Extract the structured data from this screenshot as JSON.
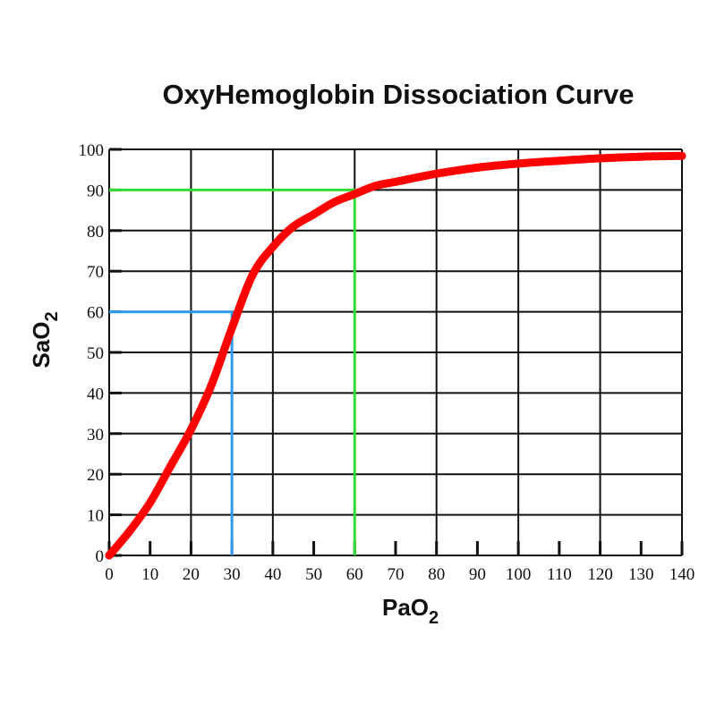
{
  "chart_data": {
    "type": "line",
    "title": "OxyHemoglobin Dissociation Curve",
    "xlabel": {
      "main": "PaO",
      "subscript": "2"
    },
    "ylabel": {
      "main": "SaO",
      "subscript": "2"
    },
    "xlim": [
      0,
      140
    ],
    "ylim": [
      0,
      100
    ],
    "x_ticks": [
      0,
      10,
      20,
      30,
      40,
      50,
      60,
      70,
      80,
      90,
      100,
      110,
      120,
      130,
      140
    ],
    "y_ticks": [
      0,
      10,
      20,
      30,
      40,
      50,
      60,
      70,
      80,
      90,
      100
    ],
    "x_gridlines": [
      0,
      20,
      40,
      60,
      80,
      100,
      120,
      140
    ],
    "y_gridlines": [
      0,
      10,
      20,
      30,
      40,
      50,
      60,
      70,
      80,
      90,
      100
    ],
    "series": [
      {
        "name": "oxyhemoglobin-curve",
        "color": "#ff0000",
        "x": [
          0,
          5,
          10,
          15,
          20,
          25,
          30,
          35,
          40,
          45,
          50,
          55,
          60,
          65,
          70,
          80,
          90,
          100,
          110,
          120,
          130,
          140
        ],
        "y": [
          0,
          6,
          13,
          22,
          31,
          42,
          56,
          69,
          76,
          81,
          84,
          87,
          89,
          91,
          92,
          94,
          95.5,
          96.5,
          97.2,
          97.8,
          98.2,
          98.4
        ]
      }
    ],
    "reference_lines": [
      {
        "name": "ref-30-60",
        "color": "#3399ee",
        "x": 30,
        "y": 60
      },
      {
        "name": "ref-60-90",
        "color": "#33dd33",
        "x": 60,
        "y": 90
      }
    ]
  }
}
